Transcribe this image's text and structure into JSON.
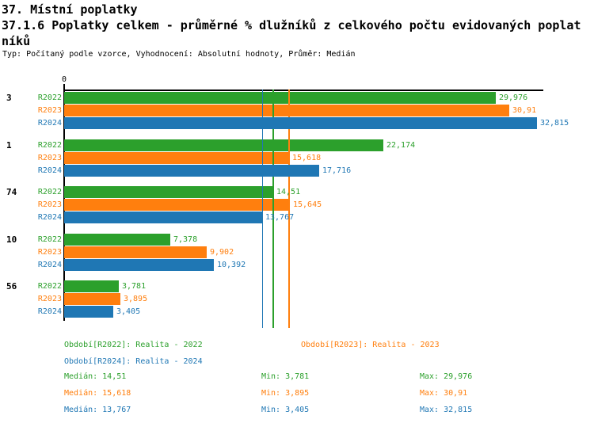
{
  "header": {
    "section_title": "37. Místní poplatky",
    "indicator_title_lines": [
      "37.1.6 Poplatky celkem - průměrné % dlužníků z celkového počtu evidovaných poplat",
      "níků"
    ],
    "meta": "Typ: Počítaný podle vzorce, Vyhodnocení: Absolutní hodnoty, Průměr: Medián"
  },
  "colors": {
    "R2022": "#2ca02c",
    "R2023": "#ff7f0e",
    "R2024": "#1f77b4",
    "axis": "#000000",
    "background": "#ffffff"
  },
  "chart_data": {
    "type": "bar",
    "orientation": "horizontal",
    "title": "37.1.6 Poplatky celkem - průměrné % dlužníků z celkového počtu evidovaných poplatníků",
    "xlabel": "",
    "ylabel": "",
    "xlim": [
      0,
      33.26
    ],
    "x_tick_labels": [
      "0"
    ],
    "grid": false,
    "legend_position": "bottom",
    "categories": [
      "3",
      "1",
      "74",
      "10",
      "56"
    ],
    "series": [
      {
        "name": "R2022",
        "color": "#2ca02c",
        "values": [
          29.976,
          22.174,
          14.51,
          7.378,
          3.781
        ],
        "value_labels": [
          "29,976",
          "22,174",
          "14,51",
          "7,378",
          "3,781"
        ],
        "median": 14.51
      },
      {
        "name": "R2023",
        "color": "#ff7f0e",
        "values": [
          30.91,
          15.618,
          15.645,
          9.902,
          3.895
        ],
        "value_labels": [
          "30,91",
          "15,618",
          "15,645",
          "9,902",
          "3,895"
        ],
        "median": 15.618
      },
      {
        "name": "R2024",
        "color": "#1f77b4",
        "values": [
          32.815,
          17.716,
          13.767,
          10.392,
          3.405
        ],
        "value_labels": [
          "32,815",
          "17,716",
          "13,767",
          "10,392",
          "3,405"
        ],
        "median": 13.767
      }
    ]
  },
  "legend": {
    "items": [
      {
        "series": "R2022",
        "label": "Období[R2022]: Realita - 2022"
      },
      {
        "series": "R2023",
        "label": "Období[R2023]: Realita - 2023"
      },
      {
        "series": "R2024",
        "label": "Období[R2024]: Realita - 2024"
      }
    ]
  },
  "stats": {
    "rows": [
      {
        "series": "R2022",
        "median": "Medián: 14,51",
        "min": "Min: 3,781",
        "max": "Max: 29,976"
      },
      {
        "series": "R2023",
        "median": "Medián: 15,618",
        "min": "Min: 3,895",
        "max": "Max: 30,91"
      },
      {
        "series": "R2024",
        "median": "Medián: 13,767",
        "min": "Min: 3,405",
        "max": "Max: 32,815"
      }
    ]
  }
}
